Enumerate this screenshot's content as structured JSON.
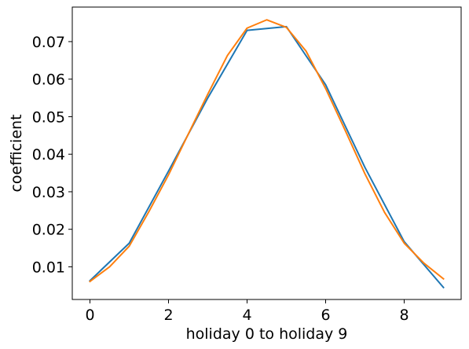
{
  "chart_data": {
    "type": "line",
    "title": "",
    "xlabel": "holiday 0 to holiday 9",
    "ylabel": "coefficient",
    "xlim": [
      -0.45,
      9.45
    ],
    "ylim": [
      0.0013,
      0.0792
    ],
    "xticks": [
      0,
      2,
      4,
      6,
      8
    ],
    "xtick_labels": [
      "0",
      "2",
      "4",
      "6",
      "8"
    ],
    "yticks": [
      0.01,
      0.02,
      0.03,
      0.04,
      0.05,
      0.06,
      0.07
    ],
    "ytick_labels": [
      "0.01",
      "0.02",
      "0.03",
      "0.04",
      "0.05",
      "0.06",
      "0.07"
    ],
    "grid": false,
    "legend": "none",
    "series": [
      {
        "color": "#1f77b4",
        "x": [
          0,
          1,
          2,
          3,
          4,
          5,
          6,
          7,
          8,
          9
        ],
        "y": [
          0.0063,
          0.0163,
          0.0355,
          0.055,
          0.073,
          0.074,
          0.0585,
          0.0365,
          0.0167,
          0.0045
        ]
      },
      {
        "color": "#ff7f0e",
        "x": [
          0,
          0.5,
          1,
          1.5,
          2,
          2.5,
          3,
          3.5,
          4,
          4.5,
          5,
          5.5,
          6,
          6.5,
          7,
          7.5,
          8,
          8.5,
          9
        ],
        "y": [
          0.0061,
          0.01,
          0.0155,
          0.0247,
          0.0345,
          0.0453,
          0.056,
          0.0663,
          0.0736,
          0.0758,
          0.0738,
          0.0675,
          0.0575,
          0.0463,
          0.0348,
          0.0245,
          0.0163,
          0.011,
          0.0068
        ]
      }
    ]
  }
}
